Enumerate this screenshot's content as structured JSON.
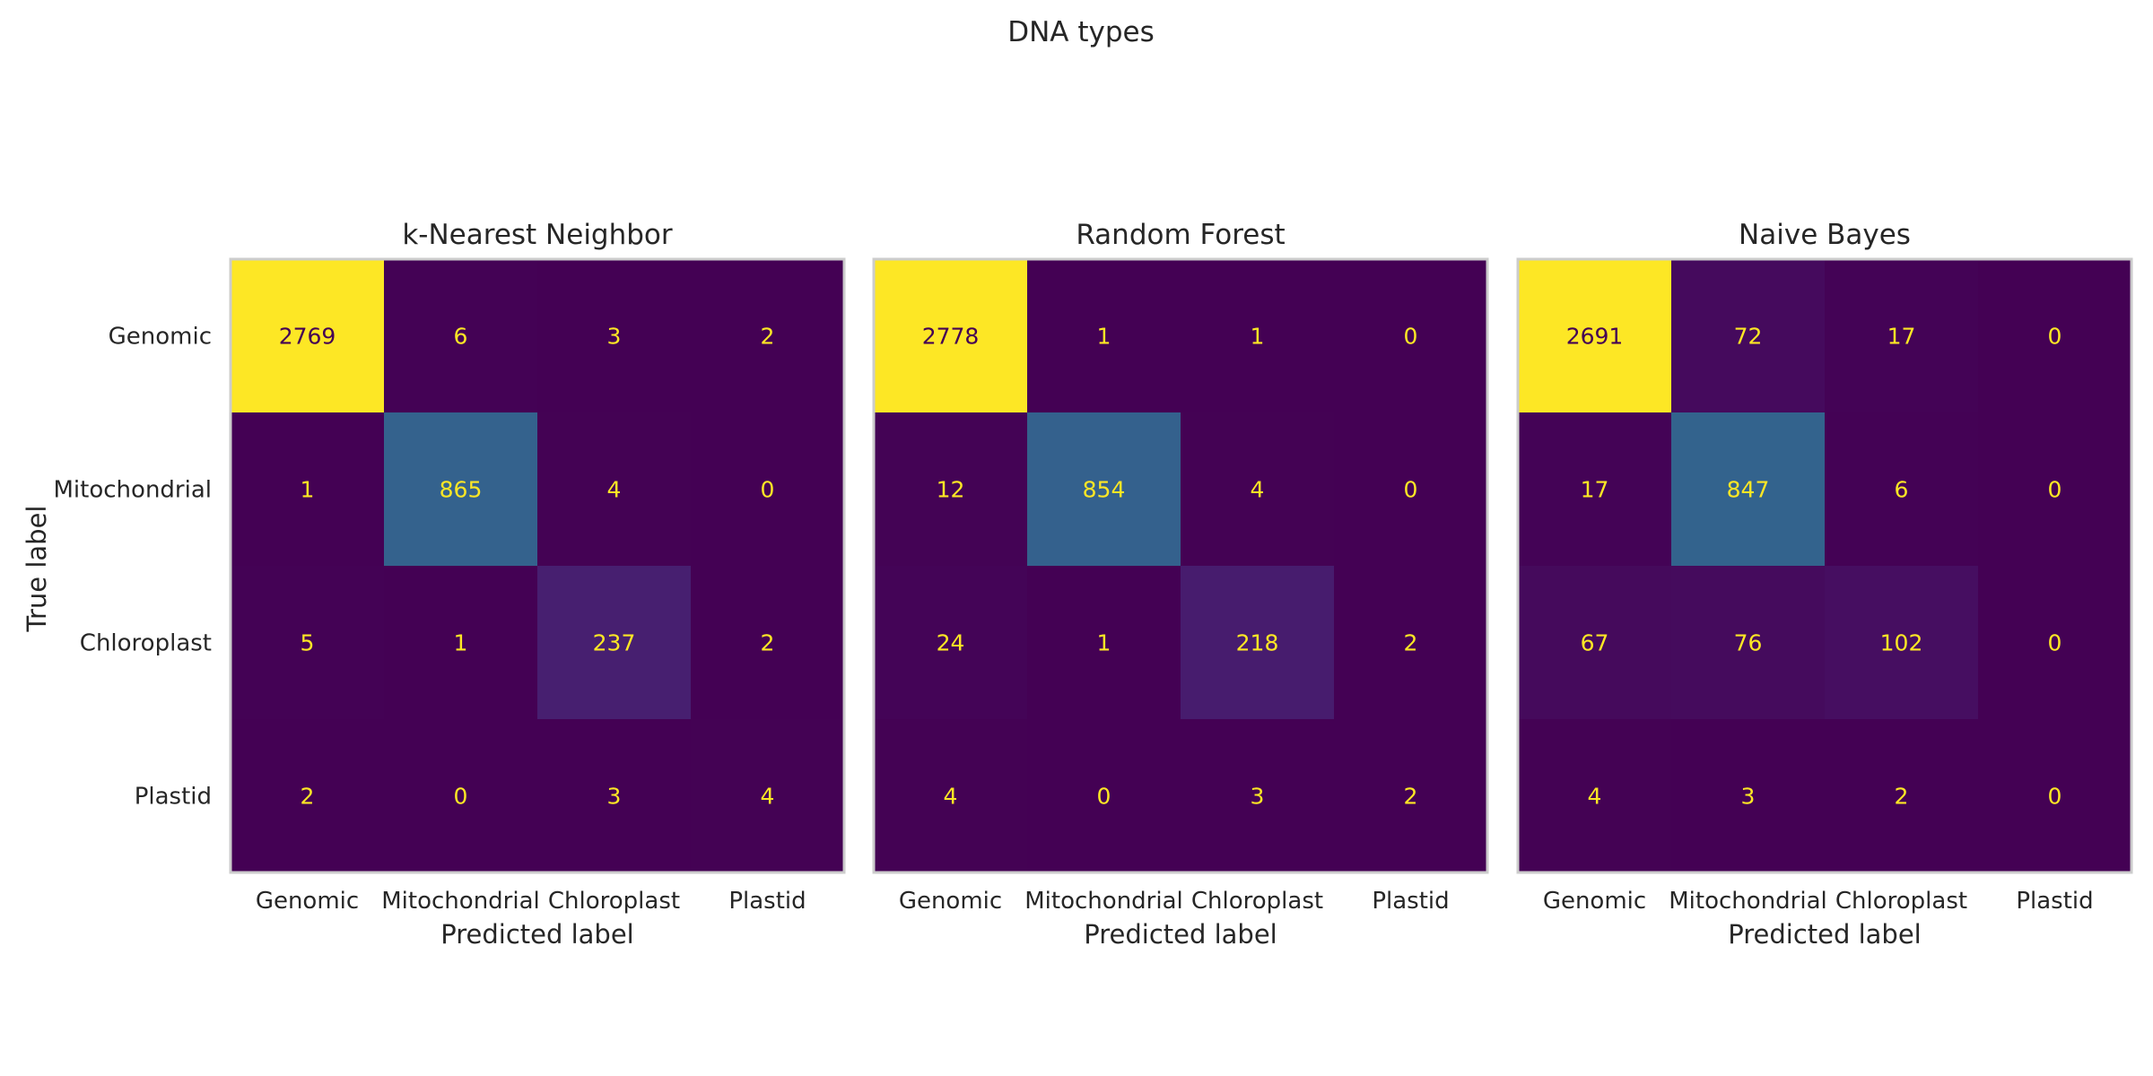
{
  "chart_data": {
    "type": "heatmap",
    "title": "DNA types",
    "xlabel": "Predicted label",
    "ylabel": "True label",
    "categories": [
      "Genomic",
      "Mitochondrial",
      "Chloroplast",
      "Plastid"
    ],
    "colormap": "viridis",
    "grid": false,
    "colorbar": false,
    "colors": {
      "low": "#440154",
      "high": "#fde725",
      "text_on_dark": "#fde725",
      "text_on_light": "#440154",
      "frame": "#cccccc",
      "text": "#262626"
    },
    "panels": [
      {
        "title": "k-Nearest Neighbor",
        "matrix": [
          [
            2769,
            6,
            3,
            2
          ],
          [
            1,
            865,
            4,
            0
          ],
          [
            5,
            1,
            237,
            2
          ],
          [
            2,
            0,
            3,
            4
          ]
        ]
      },
      {
        "title": "Random Forest",
        "matrix": [
          [
            2778,
            1,
            1,
            0
          ],
          [
            12,
            854,
            4,
            0
          ],
          [
            24,
            1,
            218,
            2
          ],
          [
            4,
            0,
            3,
            2
          ]
        ]
      },
      {
        "title": "Naive Bayes",
        "matrix": [
          [
            2691,
            72,
            17,
            0
          ],
          [
            17,
            847,
            6,
            0
          ],
          [
            67,
            76,
            102,
            0
          ],
          [
            4,
            3,
            2,
            0
          ]
        ]
      }
    ]
  }
}
